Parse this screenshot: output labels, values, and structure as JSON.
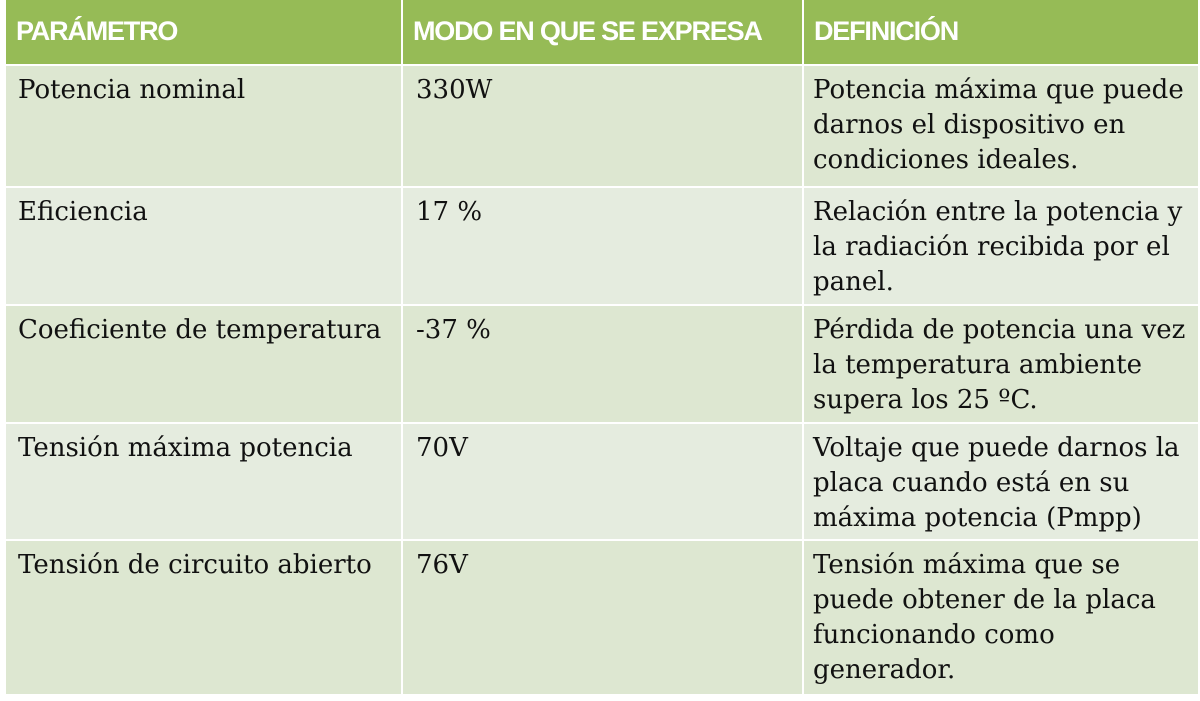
{
  "table": {
    "headers": [
      "PARÁMETRO",
      "MODO EN QUE SE EXPRESA",
      "DEFINICIÓN"
    ],
    "rows": [
      {
        "parametro": "Potencia nominal",
        "modo": "330W",
        "definicion": "Potencia máxima que puede darnos el dispositivo en condiciones ideales."
      },
      {
        "parametro": "Eficiencia",
        "modo": "17 %",
        "definicion": "Relación entre la potencia y la radiación recibida por el panel."
      },
      {
        "parametro": "Coeficiente de temperatura",
        "modo": "-37 %",
        "definicion": "Pérdida de potencia una vez la temperatura ambiente supera los 25 ºC."
      },
      {
        "parametro": "Tensión máxima potencia",
        "modo": "70V",
        "definicion": "Voltaje que puede darnos la placa cuando está en su máxima potencia (Pmpp)"
      },
      {
        "parametro": "Tensión de circuito abierto",
        "modo": "76V",
        "definicion": "Tensión máxima que se puede obtener de la placa funcionando como generador."
      }
    ]
  },
  "colors": {
    "header_bg": "#96bb56",
    "header_text": "#ffffff",
    "row_bg": "#dde7d1",
    "row_bg_alt": "#e5ecdf",
    "body_text": "#111111"
  }
}
